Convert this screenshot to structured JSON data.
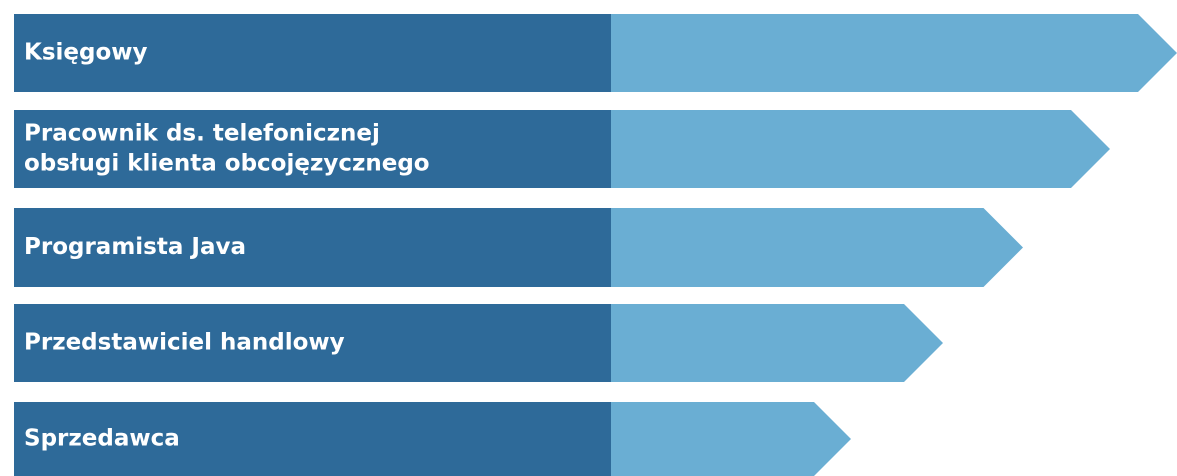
{
  "items": [
    {
      "lines": [
        "Księgowy"
      ]
    },
    {
      "lines": [
        "Pracownik ds. telefonicznej",
        "obsługi klienta obcojęzycznego"
      ]
    },
    {
      "lines": [
        "Programista Java"
      ]
    },
    {
      "lines": [
        "Przedstawiciel handlowy"
      ]
    },
    {
      "lines": [
        "Sprzedawca"
      ]
    }
  ]
}
